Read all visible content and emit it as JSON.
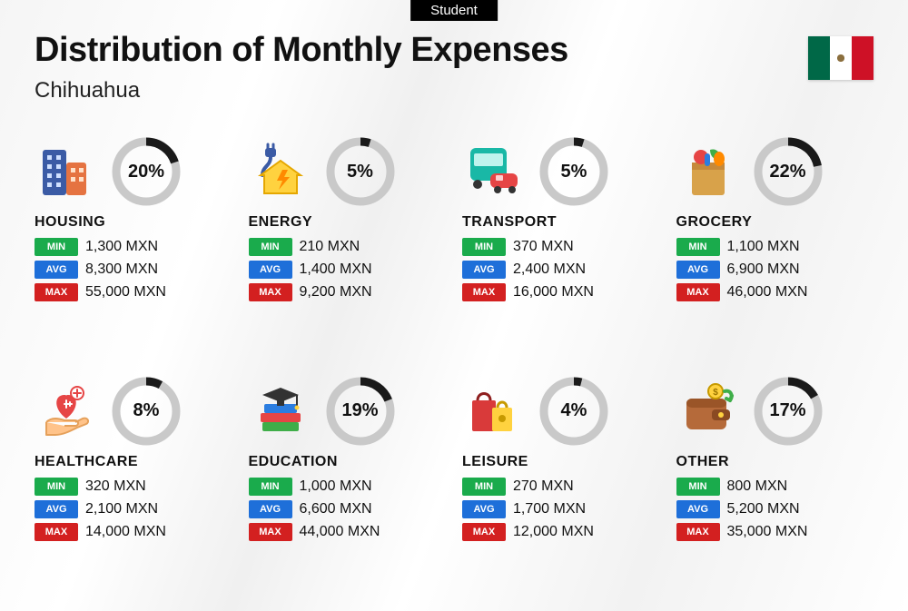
{
  "badge": "Student",
  "title": "Distribution of Monthly Expenses",
  "subtitle": "Chihuahua",
  "currency": "MXN",
  "labels": {
    "min": "MIN",
    "avg": "AVG",
    "max": "MAX"
  },
  "donut": {
    "radius": 33,
    "stroke_width": 9,
    "track_color": "#c9c9c9",
    "fill_color": "#1a1a1a"
  },
  "flag": {
    "left": "#006847",
    "mid": "#ffffff",
    "right": "#ce1126"
  },
  "tag_colors": {
    "min": "#1aab4c",
    "avg": "#1e6fd9",
    "max": "#d32020"
  },
  "categories": [
    {
      "name": "HOUSING",
      "pct": 20,
      "min": "1,300",
      "avg": "8,300",
      "max": "55,000",
      "icon": "buildings"
    },
    {
      "name": "ENERGY",
      "pct": 5,
      "min": "210",
      "avg": "1,400",
      "max": "9,200",
      "icon": "energy-house"
    },
    {
      "name": "TRANSPORT",
      "pct": 5,
      "min": "370",
      "avg": "2,400",
      "max": "16,000",
      "icon": "bus-car"
    },
    {
      "name": "GROCERY",
      "pct": 22,
      "min": "1,100",
      "avg": "6,900",
      "max": "46,000",
      "icon": "grocery-bag"
    },
    {
      "name": "HEALTHCARE",
      "pct": 8,
      "min": "320",
      "avg": "2,100",
      "max": "14,000",
      "icon": "heart-hand"
    },
    {
      "name": "EDUCATION",
      "pct": 19,
      "min": "1,000",
      "avg": "6,600",
      "max": "44,000",
      "icon": "grad-books"
    },
    {
      "name": "LEISURE",
      "pct": 4,
      "min": "270",
      "avg": "1,700",
      "max": "12,000",
      "icon": "shopping-bags"
    },
    {
      "name": "OTHER",
      "pct": 17,
      "min": "800",
      "avg": "5,200",
      "max": "35,000",
      "icon": "wallet"
    }
  ]
}
